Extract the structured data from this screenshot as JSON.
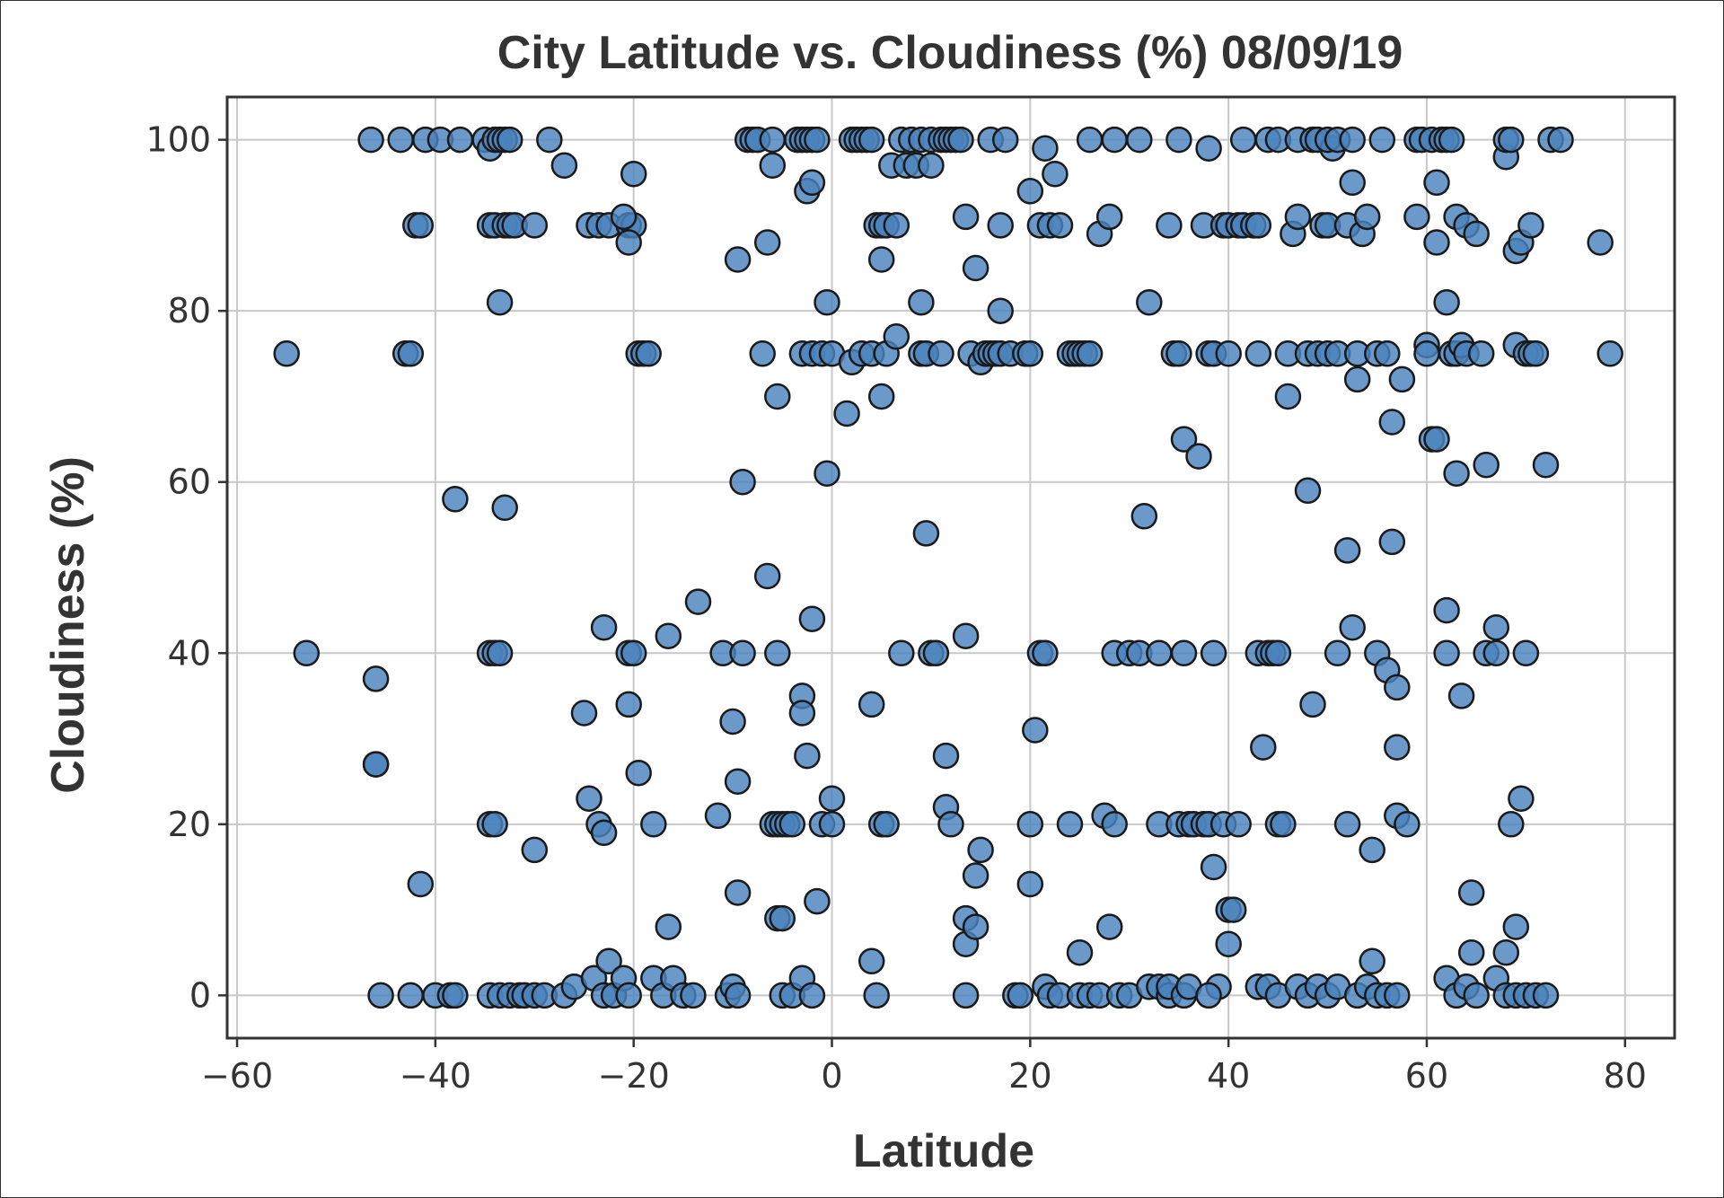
{
  "chart_data": {
    "type": "scatter",
    "title": "City Latitude vs. Cloudiness (%) 08/09/19",
    "xlabel": "Latitude",
    "ylabel": "Cloudiness (%)",
    "xlim": [
      -61,
      85
    ],
    "ylim": [
      -5,
      105
    ],
    "x_ticks": [
      -60,
      -40,
      -20,
      0,
      20,
      40,
      60,
      80
    ],
    "y_ticks": [
      0,
      20,
      40,
      60,
      80,
      100
    ],
    "x_tick_labels": [
      "−60",
      "−40",
      "−20",
      "0",
      "20",
      "40",
      "60",
      "80"
    ],
    "y_tick_labels": [
      "0",
      "20",
      "40",
      "60",
      "80",
      "100"
    ],
    "grid": true,
    "marker_color": "#4a83bd",
    "marker_edge_color": "#1a1a1a",
    "points": [
      [
        -55,
        75
      ],
      [
        -53,
        40
      ],
      [
        -46.5,
        100
      ],
      [
        -46,
        37
      ],
      [
        -46,
        27
      ],
      [
        -46,
        27
      ],
      [
        -45.5,
        0
      ],
      [
        -43.5,
        100
      ],
      [
        -43,
        75
      ],
      [
        -42.5,
        75
      ],
      [
        -42,
        90
      ],
      [
        -41.5,
        90
      ],
      [
        -42.5,
        0
      ],
      [
        -41.5,
        13
      ],
      [
        -41,
        100
      ],
      [
        -40,
        0
      ],
      [
        -39.5,
        100
      ],
      [
        -38.5,
        0
      ],
      [
        -37.5,
        100
      ],
      [
        -38,
        0
      ],
      [
        -38,
        58
      ],
      [
        -35,
        100
      ],
      [
        -34.5,
        99
      ],
      [
        -34,
        100
      ],
      [
        -33.5,
        100
      ],
      [
        -33,
        100
      ],
      [
        -32.5,
        100
      ],
      [
        -34.5,
        90
      ],
      [
        -34,
        90
      ],
      [
        -33,
        90
      ],
      [
        -32.5,
        90
      ],
      [
        -32,
        90
      ],
      [
        -33.5,
        81
      ],
      [
        -33,
        57
      ],
      [
        -34.5,
        40
      ],
      [
        -34,
        40
      ],
      [
        -33.5,
        40
      ],
      [
        -34.5,
        20
      ],
      [
        -34,
        20
      ],
      [
        -34.5,
        0
      ],
      [
        -33.5,
        0
      ],
      [
        -32.5,
        0
      ],
      [
        -31.5,
        0
      ],
      [
        -31,
        0
      ],
      [
        -30,
        0
      ],
      [
        -29,
        0
      ],
      [
        -30,
        90
      ],
      [
        -28.5,
        100
      ],
      [
        -27,
        97
      ],
      [
        -30,
        17
      ],
      [
        -27,
        0
      ],
      [
        -26,
        1
      ],
      [
        -25,
        33
      ],
      [
        -24.5,
        23
      ],
      [
        -24.5,
        90
      ],
      [
        -23.5,
        90
      ],
      [
        -22.5,
        90
      ],
      [
        -23,
        43
      ],
      [
        -23.5,
        20
      ],
      [
        -23,
        19
      ],
      [
        -24,
        2
      ],
      [
        -23,
        0
      ],
      [
        -22.5,
        4
      ],
      [
        -22,
        0
      ],
      [
        -21,
        2
      ],
      [
        -20.5,
        0
      ],
      [
        -20,
        96
      ],
      [
        -20.5,
        90
      ],
      [
        -20,
        90
      ],
      [
        -21,
        91
      ],
      [
        -20.5,
        88
      ],
      [
        -19.5,
        75
      ],
      [
        -19,
        75
      ],
      [
        -18.5,
        75
      ],
      [
        -20.5,
        40
      ],
      [
        -20,
        40
      ],
      [
        -20.5,
        34
      ],
      [
        -19.5,
        26
      ],
      [
        -18,
        20
      ],
      [
        -16.5,
        42
      ],
      [
        -16.5,
        8
      ],
      [
        -18,
        2
      ],
      [
        -17,
        0
      ],
      [
        -16,
        2
      ],
      [
        -15,
        0
      ],
      [
        -14,
        0
      ],
      [
        -13.5,
        46
      ],
      [
        -11.5,
        21
      ],
      [
        -11,
        40
      ],
      [
        -10.5,
        0
      ],
      [
        -10,
        1
      ],
      [
        -9.5,
        0
      ],
      [
        -10,
        32
      ],
      [
        -9.5,
        25
      ],
      [
        -9.5,
        12
      ],
      [
        -9,
        40
      ],
      [
        -9,
        60
      ],
      [
        -9.5,
        86
      ],
      [
        -8.5,
        100
      ],
      [
        -8,
        100
      ],
      [
        -7.5,
        100
      ],
      [
        -7,
        75
      ],
      [
        -6.5,
        49
      ],
      [
        -6.5,
        88
      ],
      [
        -6,
        97
      ],
      [
        -6,
        100
      ],
      [
        -5.5,
        40
      ],
      [
        -6,
        20
      ],
      [
        -5.5,
        20
      ],
      [
        -5,
        20
      ],
      [
        -4.5,
        20
      ],
      [
        -4,
        20
      ],
      [
        -5.5,
        9
      ],
      [
        -5,
        9
      ],
      [
        -5,
        0
      ],
      [
        -4,
        0
      ],
      [
        -5.5,
        70
      ],
      [
        -3.5,
        100
      ],
      [
        -3,
        100
      ],
      [
        -2.5,
        100
      ],
      [
        -2,
        100
      ],
      [
        -1.5,
        100
      ],
      [
        -3,
        35
      ],
      [
        -3,
        33
      ],
      [
        -2.5,
        28
      ],
      [
        -2.5,
        94
      ],
      [
        -2,
        95
      ],
      [
        -3,
        75
      ],
      [
        -2,
        75
      ],
      [
        -1,
        75
      ],
      [
        -0.5,
        81
      ],
      [
        -2,
        44
      ],
      [
        -1.5,
        11
      ],
      [
        -1,
        20
      ],
      [
        0,
        20
      ],
      [
        0,
        23
      ],
      [
        -0.5,
        61
      ],
      [
        0,
        75
      ],
      [
        -3,
        2
      ],
      [
        -2,
        0
      ],
      [
        2,
        74
      ],
      [
        1.5,
        68
      ],
      [
        2,
        100
      ],
      [
        2.5,
        100
      ],
      [
        3,
        100
      ],
      [
        3.5,
        100
      ],
      [
        4,
        100
      ],
      [
        3,
        75
      ],
      [
        4,
        75
      ],
      [
        4,
        34
      ],
      [
        4,
        4
      ],
      [
        4.5,
        0
      ],
      [
        4.5,
        90
      ],
      [
        5,
        90
      ],
      [
        5.5,
        90
      ],
      [
        6.5,
        90
      ],
      [
        5,
        70
      ],
      [
        5,
        86
      ],
      [
        5.5,
        75
      ],
      [
        5,
        20
      ],
      [
        5.5,
        20
      ],
      [
        6,
        97
      ],
      [
        6.5,
        77
      ],
      [
        7,
        100
      ],
      [
        7,
        40
      ],
      [
        7.5,
        97
      ],
      [
        8,
        100
      ],
      [
        9,
        100
      ],
      [
        8.5,
        97
      ],
      [
        9,
        81
      ],
      [
        9,
        75
      ],
      [
        9.5,
        75
      ],
      [
        10,
        40
      ],
      [
        10.5,
        40
      ],
      [
        9.5,
        54
      ],
      [
        10,
        97
      ],
      [
        10,
        100
      ],
      [
        11,
        100
      ],
      [
        11.5,
        100
      ],
      [
        12,
        100
      ],
      [
        12.5,
        100
      ],
      [
        11,
        75
      ],
      [
        11.5,
        28
      ],
      [
        11.5,
        22
      ],
      [
        12,
        20
      ],
      [
        13,
        100
      ],
      [
        13.5,
        91
      ],
      [
        13.5,
        42
      ],
      [
        13.5,
        9
      ],
      [
        13.5,
        6
      ],
      [
        13.5,
        0
      ],
      [
        14,
        75
      ],
      [
        14.5,
        85
      ],
      [
        14.5,
        14
      ],
      [
        14.5,
        8
      ],
      [
        15,
        17
      ],
      [
        15,
        74
      ],
      [
        15.5,
        75
      ],
      [
        16,
        75
      ],
      [
        16.5,
        75
      ],
      [
        17,
        80
      ],
      [
        17,
        75
      ],
      [
        16,
        100
      ],
      [
        17,
        90
      ],
      [
        17.5,
        100
      ],
      [
        18,
        75
      ],
      [
        18.5,
        0
      ],
      [
        19,
        0
      ],
      [
        19.5,
        75
      ],
      [
        20,
        75
      ],
      [
        20,
        20
      ],
      [
        20,
        13
      ],
      [
        20.5,
        31
      ],
      [
        20,
        94
      ],
      [
        21,
        90
      ],
      [
        21,
        40
      ],
      [
        21.5,
        40
      ],
      [
        21.5,
        99
      ],
      [
        22,
        90
      ],
      [
        22.5,
        96
      ],
      [
        23,
        90
      ],
      [
        21.5,
        1
      ],
      [
        22,
        0
      ],
      [
        23,
        0
      ],
      [
        24,
        20
      ],
      [
        24,
        75
      ],
      [
        24.5,
        75
      ],
      [
        25,
        75
      ],
      [
        25.5,
        75
      ],
      [
        26,
        75
      ],
      [
        25,
        5
      ],
      [
        25,
        0
      ],
      [
        26,
        0
      ],
      [
        27,
        0
      ],
      [
        26,
        100
      ],
      [
        27,
        89
      ],
      [
        28,
        91
      ],
      [
        28.5,
        100
      ],
      [
        27.5,
        21
      ],
      [
        28.5,
        20
      ],
      [
        28,
        8
      ],
      [
        28.5,
        40
      ],
      [
        29,
        0
      ],
      [
        30,
        0
      ],
      [
        30,
        40
      ],
      [
        31,
        40
      ],
      [
        31.5,
        56
      ],
      [
        32,
        81
      ],
      [
        31,
        100
      ],
      [
        32,
        1
      ],
      [
        33,
        1
      ],
      [
        33,
        20
      ],
      [
        33,
        40
      ],
      [
        34,
        0
      ],
      [
        34,
        1
      ],
      [
        34,
        90
      ],
      [
        34.5,
        75
      ],
      [
        35,
        75
      ],
      [
        35.5,
        65
      ],
      [
        35,
        100
      ],
      [
        35.5,
        40
      ],
      [
        35,
        20
      ],
      [
        36,
        20
      ],
      [
        36.5,
        20
      ],
      [
        35.5,
        0
      ],
      [
        36,
        1
      ],
      [
        37,
        63
      ],
      [
        38,
        75
      ],
      [
        38.5,
        75
      ],
      [
        38,
        99
      ],
      [
        37.5,
        90
      ],
      [
        37.5,
        20
      ],
      [
        38,
        20
      ],
      [
        38.5,
        15
      ],
      [
        38.5,
        40
      ],
      [
        39,
        1
      ],
      [
        38,
        0
      ],
      [
        39.5,
        90
      ],
      [
        40,
        90
      ],
      [
        41,
        90
      ],
      [
        41.5,
        90
      ],
      [
        40,
        75
      ],
      [
        39.5,
        20
      ],
      [
        40,
        10
      ],
      [
        40.5,
        10
      ],
      [
        40,
        6
      ],
      [
        41,
        20
      ],
      [
        41.5,
        100
      ],
      [
        42.5,
        90
      ],
      [
        43,
        75
      ],
      [
        43,
        90
      ],
      [
        43,
        40
      ],
      [
        43.5,
        29
      ],
      [
        44,
        40
      ],
      [
        44.5,
        40
      ],
      [
        45,
        40
      ],
      [
        45,
        20
      ],
      [
        45.5,
        20
      ],
      [
        44,
        100
      ],
      [
        45,
        100
      ],
      [
        43,
        1
      ],
      [
        44,
        1
      ],
      [
        45,
        0
      ],
      [
        46,
        70
      ],
      [
        46,
        75
      ],
      [
        46.5,
        89
      ],
      [
        47,
        91
      ],
      [
        47,
        100
      ],
      [
        48,
        59
      ],
      [
        48.5,
        34
      ],
      [
        48,
        75
      ],
      [
        49,
        75
      ],
      [
        48.5,
        100
      ],
      [
        49,
        100
      ],
      [
        49.5,
        90
      ],
      [
        50,
        90
      ],
      [
        50.5,
        99
      ],
      [
        50,
        100
      ],
      [
        51,
        100
      ],
      [
        50,
        75
      ],
      [
        51,
        75
      ],
      [
        51,
        40
      ],
      [
        47,
        1
      ],
      [
        48,
        0
      ],
      [
        49,
        1
      ],
      [
        50,
        0
      ],
      [
        51,
        1
      ],
      [
        52,
        20
      ],
      [
        52,
        52
      ],
      [
        52,
        90
      ],
      [
        52.5,
        43
      ],
      [
        52.5,
        95
      ],
      [
        53,
        72
      ],
      [
        53.5,
        89
      ],
      [
        53,
        75
      ],
      [
        52.5,
        100
      ],
      [
        54,
        91
      ],
      [
        54.5,
        17
      ],
      [
        54.5,
        4
      ],
      [
        55,
        75
      ],
      [
        55,
        40
      ],
      [
        55.5,
        100
      ],
      [
        56,
        38
      ],
      [
        56,
        75
      ],
      [
        56.5,
        67
      ],
      [
        56.5,
        53
      ],
      [
        57,
        36
      ],
      [
        57,
        29
      ],
      [
        57,
        21
      ],
      [
        57.5,
        72
      ],
      [
        53,
        0
      ],
      [
        54,
        1
      ],
      [
        55,
        0
      ],
      [
        56,
        0
      ],
      [
        57,
        0
      ],
      [
        58,
        20
      ],
      [
        59,
        91
      ],
      [
        59,
        100
      ],
      [
        59.5,
        100
      ],
      [
        60,
        76
      ],
      [
        60,
        75
      ],
      [
        60.5,
        100
      ],
      [
        60.5,
        65
      ],
      [
        61,
        65
      ],
      [
        61,
        95
      ],
      [
        61,
        88
      ],
      [
        61.5,
        100
      ],
      [
        62,
        100
      ],
      [
        62.5,
        100
      ],
      [
        62,
        45
      ],
      [
        62,
        81
      ],
      [
        62,
        40
      ],
      [
        62.5,
        75
      ],
      [
        63,
        91
      ],
      [
        63,
        61
      ],
      [
        63,
        75
      ],
      [
        63.5,
        76
      ],
      [
        63.5,
        35
      ],
      [
        64,
        75
      ],
      [
        64,
        90
      ],
      [
        64.5,
        12
      ],
      [
        64.5,
        5
      ],
      [
        65,
        89
      ],
      [
        65.5,
        75
      ],
      [
        62,
        2
      ],
      [
        63,
        0
      ],
      [
        64,
        1
      ],
      [
        65,
        0
      ],
      [
        66,
        62
      ],
      [
        66,
        40
      ],
      [
        67,
        43
      ],
      [
        67,
        40
      ],
      [
        67,
        2
      ],
      [
        68,
        5
      ],
      [
        68,
        98
      ],
      [
        68,
        100
      ],
      [
        68.5,
        100
      ],
      [
        68.5,
        20
      ],
      [
        69,
        8
      ],
      [
        69,
        87
      ],
      [
        69,
        76
      ],
      [
        69.5,
        88
      ],
      [
        70,
        75
      ],
      [
        69.5,
        23
      ],
      [
        70,
        40
      ],
      [
        70.5,
        90
      ],
      [
        70.5,
        75
      ],
      [
        71,
        75
      ],
      [
        72,
        62
      ],
      [
        68,
        0
      ],
      [
        69,
        0
      ],
      [
        70,
        0
      ],
      [
        71,
        0
      ],
      [
        72,
        0
      ],
      [
        72.5,
        100
      ],
      [
        73.5,
        100
      ],
      [
        77.5,
        88
      ],
      [
        78.5,
        75
      ]
    ]
  }
}
